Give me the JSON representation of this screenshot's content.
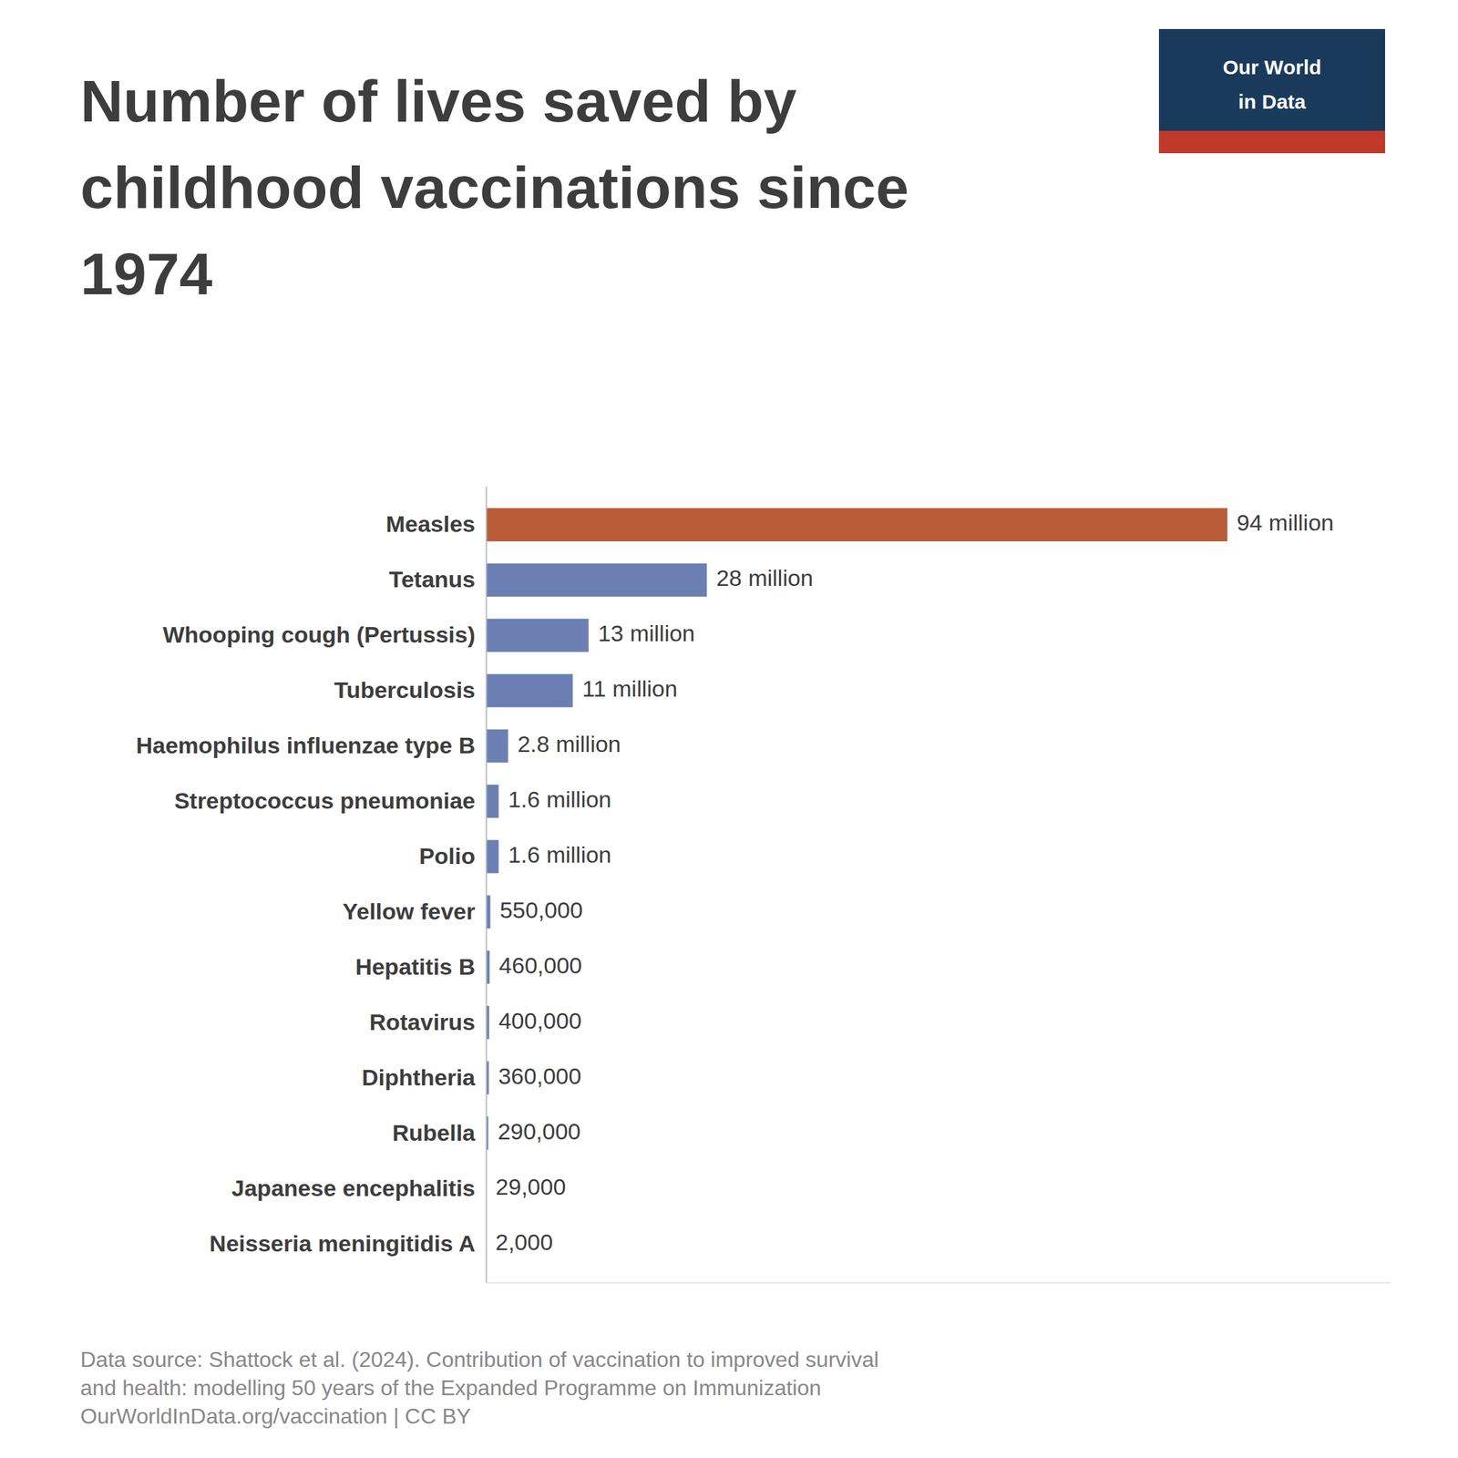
{
  "chart_data": {
    "type": "bar",
    "orientation": "horizontal",
    "title": "Number of lives saved by\nchildhood vaccinations since\n1974",
    "categories": [
      "Measles",
      "Tetanus",
      "Whooping cough (Pertussis)",
      "Tuberculosis",
      "Haemophilus influenzae type B",
      "Streptococcus pneumoniae",
      "Polio",
      "Yellow fever",
      "Hepatitis B",
      "Rotavirus",
      "Diphtheria",
      "Rubella",
      "Japanese encephalitis",
      "Neisseria meningitidis A"
    ],
    "values": [
      94000000,
      28000000,
      13000000,
      11000000,
      2800000,
      1600000,
      1600000,
      550000,
      460000,
      400000,
      360000,
      290000,
      29000,
      2000
    ],
    "value_labels": [
      "94 million",
      "28 million",
      "13 million",
      "11 million",
      "2.8 million",
      "1.6 million",
      "1.6 million",
      "550,000",
      "460,000",
      "400,000",
      "360,000",
      "290,000",
      "29,000",
      "2,000"
    ],
    "data_labels": true,
    "colors": [
      "#b85c38",
      "#6b7fb3",
      "#6b7fb3",
      "#6b7fb3",
      "#6b7fb3",
      "#6b7fb3",
      "#6b7fb3",
      "#6b7fb3",
      "#6b7fb3",
      "#6b7fb3",
      "#6b7fb3",
      "#6b7fb3",
      "#6b7fb3",
      "#6b7fb3"
    ],
    "xlim": [
      0,
      114680000
    ],
    "tick_labels": "y",
    "grid": false,
    "annotations": [
      "Our World",
      "in Data",
      "Data source: Shattock et al. (2024). Contribution of vaccination to improved survival\nand health: modelling 50 years of the Expanded Programme on Immunization\nOurWorldInData.org/vaccination | CC BY"
    ]
  }
}
